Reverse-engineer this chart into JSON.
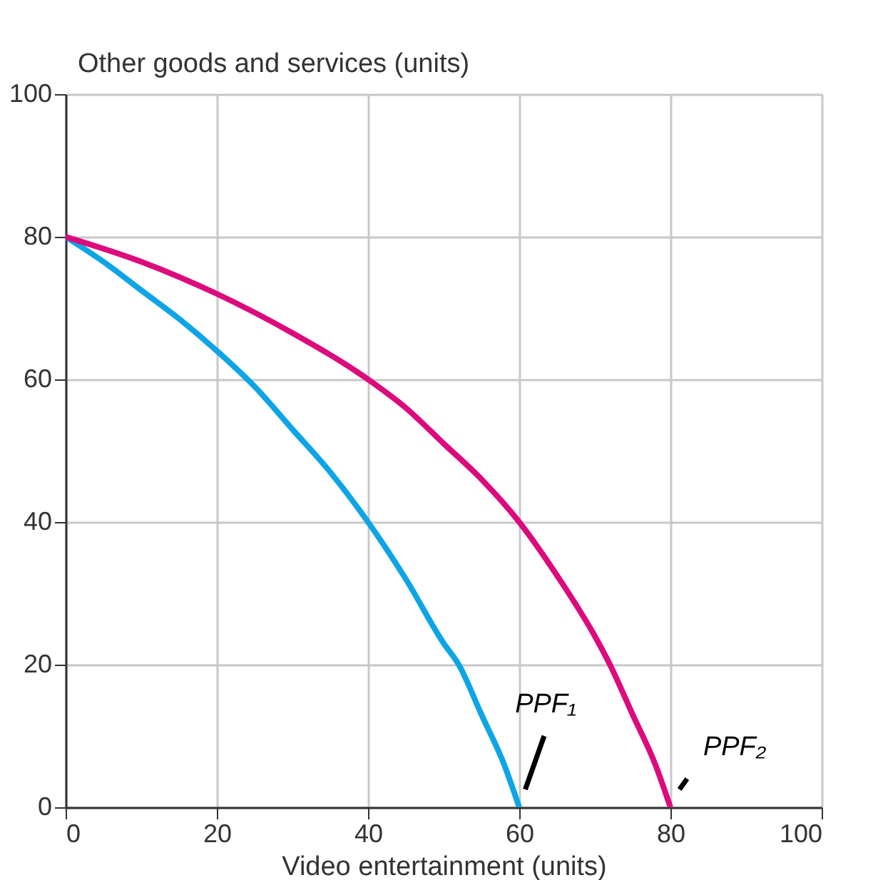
{
  "chart_data": {
    "type": "line",
    "xlabel": "Video entertainment (units)",
    "ylabel": "Other goods and services (units)",
    "series": [
      {
        "name": "PPF₁",
        "x": [
          0,
          5,
          10,
          15,
          20,
          25,
          30,
          35,
          40,
          45,
          50,
          52,
          55,
          58,
          60
        ],
        "values": [
          80,
          76.5,
          72.5,
          68.5,
          64,
          59,
          53,
          47,
          40,
          32,
          23,
          20,
          13,
          6,
          0
        ],
        "color": "#0ea5e6"
      },
      {
        "name": "PPF₂",
        "x": [
          0,
          10,
          20,
          30,
          40,
          45,
          50,
          55,
          60,
          65,
          70,
          72,
          75,
          78,
          80
        ],
        "values": [
          80,
          76.5,
          72,
          66.5,
          60,
          56,
          51,
          46,
          40,
          32.5,
          24,
          20,
          13,
          6,
          0
        ],
        "color": "#dd0a7d"
      }
    ],
    "xlim": [
      0,
      100
    ],
    "ylim": [
      0,
      100
    ],
    "xticks": [
      0,
      20,
      40,
      60,
      80,
      100
    ],
    "yticks": [
      0,
      20,
      40,
      60,
      80,
      100
    ],
    "grid": true,
    "marker": "none",
    "line_style": "solid"
  }
}
